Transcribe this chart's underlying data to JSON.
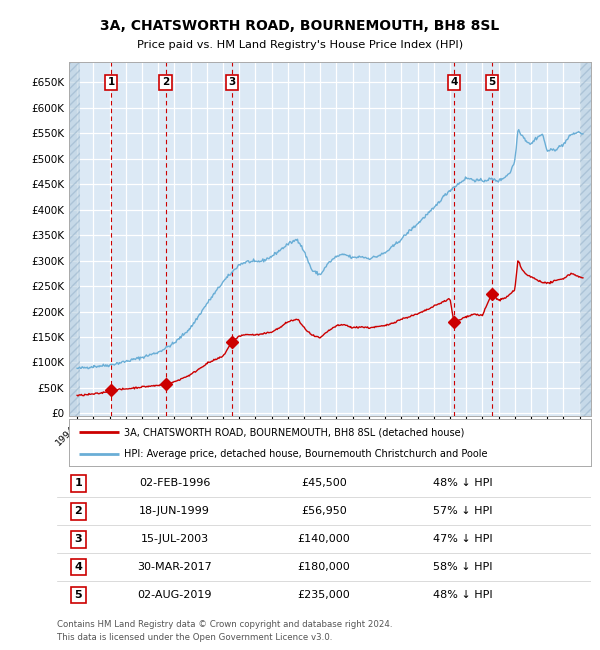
{
  "title": "3A, CHATSWORTH ROAD, BOURNEMOUTH, BH8 8SL",
  "subtitle": "Price paid vs. HM Land Registry's House Price Index (HPI)",
  "ylabel_ticks": [
    "£0",
    "£50K",
    "£100K",
    "£150K",
    "£200K",
    "£250K",
    "£300K",
    "£350K",
    "£400K",
    "£450K",
    "£500K",
    "£550K",
    "£600K",
    "£650K"
  ],
  "ytick_values": [
    0,
    50000,
    100000,
    150000,
    200000,
    250000,
    300000,
    350000,
    400000,
    450000,
    500000,
    550000,
    600000,
    650000
  ],
  "xlim": [
    1993.5,
    2025.7
  ],
  "ylim": [
    -5000,
    690000
  ],
  "bg_color": "#dce9f5",
  "grid_color": "#ffffff",
  "hpi_color": "#6aaed6",
  "price_color": "#cc0000",
  "transactions": [
    {
      "num": 1,
      "date_str": "02-FEB-1996",
      "year": 1996.09,
      "price": 45500,
      "pct": "48% ↓ HPI"
    },
    {
      "num": 2,
      "date_str": "18-JUN-1999",
      "year": 1999.46,
      "price": 56950,
      "pct": "57% ↓ HPI"
    },
    {
      "num": 3,
      "date_str": "15-JUL-2003",
      "year": 2003.54,
      "price": 140000,
      "pct": "47% ↓ HPI"
    },
    {
      "num": 4,
      "date_str": "30-MAR-2017",
      "year": 2017.24,
      "price": 180000,
      "pct": "58% ↓ HPI"
    },
    {
      "num": 5,
      "date_str": "02-AUG-2019",
      "year": 2019.58,
      "price": 235000,
      "pct": "48% ↓ HPI"
    }
  ],
  "legend_label_price": "3A, CHATSWORTH ROAD, BOURNEMOUTH, BH8 8SL (detached house)",
  "legend_label_hpi": "HPI: Average price, detached house, Bournemouth Christchurch and Poole",
  "footer1": "Contains HM Land Registry data © Crown copyright and database right 2024.",
  "footer2": "This data is licensed under the Open Government Licence v3.0.",
  "hpi_anchors": [
    [
      1994.0,
      88000
    ],
    [
      1995.0,
      92000
    ],
    [
      1996.0,
      95000
    ],
    [
      1997.0,
      102000
    ],
    [
      1998.0,
      110000
    ],
    [
      1999.0,
      120000
    ],
    [
      2000.0,
      138000
    ],
    [
      2001.0,
      168000
    ],
    [
      2002.0,
      215000
    ],
    [
      2003.0,
      258000
    ],
    [
      2003.5,
      275000
    ],
    [
      2004.0,
      292000
    ],
    [
      2004.5,
      298000
    ],
    [
      2005.0,
      297000
    ],
    [
      2005.5,
      300000
    ],
    [
      2006.0,
      308000
    ],
    [
      2006.5,
      320000
    ],
    [
      2007.0,
      332000
    ],
    [
      2007.6,
      342000
    ],
    [
      2008.0,
      318000
    ],
    [
      2008.5,
      280000
    ],
    [
      2009.0,
      272000
    ],
    [
      2009.5,
      295000
    ],
    [
      2010.0,
      308000
    ],
    [
      2010.5,
      312000
    ],
    [
      2011.0,
      305000
    ],
    [
      2011.5,
      308000
    ],
    [
      2012.0,
      304000
    ],
    [
      2012.5,
      308000
    ],
    [
      2013.0,
      315000
    ],
    [
      2013.5,
      328000
    ],
    [
      2014.0,
      342000
    ],
    [
      2014.5,
      358000
    ],
    [
      2015.0,
      372000
    ],
    [
      2015.5,
      388000
    ],
    [
      2016.0,
      402000
    ],
    [
      2016.5,
      422000
    ],
    [
      2017.0,
      438000
    ],
    [
      2017.5,
      450000
    ],
    [
      2018.0,
      462000
    ],
    [
      2018.5,
      458000
    ],
    [
      2019.0,
      456000
    ],
    [
      2019.5,
      460000
    ],
    [
      2020.0,
      456000
    ],
    [
      2020.3,
      462000
    ],
    [
      2020.7,
      472000
    ],
    [
      2021.0,
      495000
    ],
    [
      2021.2,
      558000
    ],
    [
      2021.4,
      548000
    ],
    [
      2021.7,
      535000
    ],
    [
      2022.0,
      528000
    ],
    [
      2022.3,
      540000
    ],
    [
      2022.7,
      548000
    ],
    [
      2023.0,
      515000
    ],
    [
      2023.5,
      518000
    ],
    [
      2024.0,
      528000
    ],
    [
      2024.5,
      548000
    ],
    [
      2025.0,
      552000
    ],
    [
      2025.2,
      548000
    ]
  ],
  "price_anchors": [
    [
      1994.0,
      35000
    ],
    [
      1995.0,
      38000
    ],
    [
      1995.5,
      40000
    ],
    [
      1996.09,
      45500
    ],
    [
      1996.5,
      46500
    ],
    [
      1997.0,
      48000
    ],
    [
      1998.0,
      52000
    ],
    [
      1999.0,
      55000
    ],
    [
      1999.46,
      56950
    ],
    [
      2000.0,
      62000
    ],
    [
      2001.0,
      76000
    ],
    [
      2002.0,
      98000
    ],
    [
      2003.0,
      112000
    ],
    [
      2003.54,
      140000
    ],
    [
      2004.0,
      152000
    ],
    [
      2004.5,
      155000
    ],
    [
      2005.0,
      154000
    ],
    [
      2005.5,
      156000
    ],
    [
      2006.0,
      160000
    ],
    [
      2006.5,
      168000
    ],
    [
      2007.0,
      180000
    ],
    [
      2007.6,
      185000
    ],
    [
      2008.0,
      168000
    ],
    [
      2008.5,
      153000
    ],
    [
      2009.0,
      148000
    ],
    [
      2009.5,
      162000
    ],
    [
      2010.0,
      172000
    ],
    [
      2010.5,
      174000
    ],
    [
      2011.0,
      168000
    ],
    [
      2011.5,
      170000
    ],
    [
      2012.0,
      168000
    ],
    [
      2012.5,
      170000
    ],
    [
      2013.0,
      172000
    ],
    [
      2013.5,
      178000
    ],
    [
      2014.0,
      185000
    ],
    [
      2014.5,
      190000
    ],
    [
      2015.0,
      195000
    ],
    [
      2015.5,
      202000
    ],
    [
      2016.0,
      210000
    ],
    [
      2016.5,
      218000
    ],
    [
      2017.0,
      225000
    ],
    [
      2017.24,
      180000
    ],
    [
      2017.5,
      182000
    ],
    [
      2018.0,
      190000
    ],
    [
      2018.5,
      195000
    ],
    [
      2019.0,
      192000
    ],
    [
      2019.58,
      235000
    ],
    [
      2020.0,
      222000
    ],
    [
      2020.5,
      228000
    ],
    [
      2021.0,
      242000
    ],
    [
      2021.2,
      302000
    ],
    [
      2021.4,
      285000
    ],
    [
      2021.7,
      272000
    ],
    [
      2022.0,
      268000
    ],
    [
      2022.5,
      260000
    ],
    [
      2023.0,
      255000
    ],
    [
      2023.5,
      260000
    ],
    [
      2024.0,
      265000
    ],
    [
      2024.5,
      275000
    ],
    [
      2025.0,
      268000
    ],
    [
      2025.2,
      265000
    ]
  ]
}
